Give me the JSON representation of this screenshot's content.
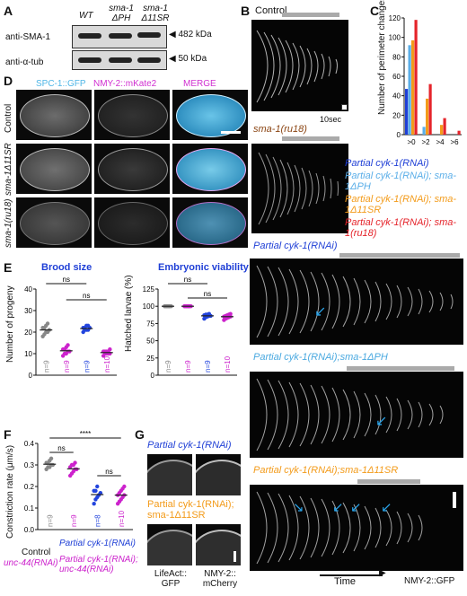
{
  "panels": {
    "A": "A",
    "B": "B",
    "C": "C",
    "D": "D",
    "E": "E",
    "F": "F",
    "G": "G"
  },
  "panelA": {
    "col1": "WT",
    "col2": "sma-1 ΔPH",
    "col3": "sma-1 Δ11SR",
    "row1": "anti-SMA-1",
    "row2": "anti-α-tub",
    "kda1": "482 kDa",
    "kda2": "50 kDa"
  },
  "panelB": {
    "control": "Control",
    "time_scale": "10sec",
    "ru18": "sma-1(ru18)",
    "partial": "Partial cyk-1(RNAi)",
    "partial_ph": "Partial cyk-1(RNAi);sma-1ΔPH",
    "partial_11sr": "Partial cyk-1(RNAi);sma-1Δ11SR",
    "time": "Time",
    "nmy": "NMY-2::GFP"
  },
  "panelC": {
    "ylabel": "Number of perimeter changes",
    "legend": [
      {
        "label": "Partial cyk-1(RNAi)",
        "color": "#1f3fd6"
      },
      {
        "label": "Partial cyk-1(RNAi); sma-1ΔPH",
        "color": "#5aaee8"
      },
      {
        "label": "Partial cyk-1(RNAi); sma-1Δ11SR",
        "color": "#f39b1a"
      },
      {
        "label": "Partial cyk-1(RNAi); sma-1(ru18)",
        "color": "#e5242b"
      }
    ]
  },
  "panelD": {
    "ch1": "SPC-1::GFP",
    "ch2": "NMY-2::mKate2",
    "ch3": "MERGE",
    "rows": [
      "Control",
      "sma-1Δ11SR",
      "sma-1(ru18)"
    ]
  },
  "panelE": {
    "brood_title": "Brood size",
    "brood_ylabel": "Number of progeny",
    "viab_title": "Embryonic viability",
    "viab_ylabel": "Hatched larvae (%)",
    "ns": "ns",
    "n": [
      "n=9",
      "n=9",
      "n=9",
      "n=10"
    ]
  },
  "panelF": {
    "ylabel": "Constriction rate (μm/s)",
    "stars": "****",
    "ns": "ns",
    "n": [
      "n=9",
      "n=9",
      "n=8",
      "n=10"
    ],
    "x_control": "Control",
    "x_unc": "unc-44(RNAi)",
    "x_partial": "Partial cyk-1(RNAi)",
    "x_partial_unc": "Partial cyk-1(RNAi); unc-44(RNAi)"
  },
  "panelG": {
    "row1": "Partial cyk-1(RNAi)",
    "row2": "Partial cyk-1(RNAi); sma-1Δ11SR",
    "col1": "LifeAct:: GFP",
    "col2": "NMY-2:: mCherry"
  },
  "chart_data": [
    {
      "type": "bar",
      "panel": "C",
      "categories": [
        ">0",
        ">2",
        ">4",
        ">6"
      ],
      "ylabel": "Number of perimeter changes",
      "ylim": [
        0,
        120
      ],
      "series": [
        {
          "name": "Partial cyk-1(RNAi)",
          "color": "#1f3fd6",
          "values": [
            47,
            0,
            0,
            0
          ]
        },
        {
          "name": "Partial cyk-1(RNAi); sma-1ΔPH",
          "color": "#5aaee8",
          "values": [
            92,
            8,
            0,
            0
          ]
        },
        {
          "name": "Partial cyk-1(RNAi); sma-1Δ11SR",
          "color": "#f39b1a",
          "values": [
            97,
            37,
            10,
            0
          ]
        },
        {
          "name": "Partial cyk-1(RNAi); sma-1(ru18)",
          "color": "#e5242b",
          "values": [
            118,
            52,
            17,
            4
          ]
        }
      ]
    },
    {
      "type": "scatter",
      "panel": "E-brood",
      "title": "Brood size",
      "ylabel": "Number of progeny",
      "ylim": [
        0,
        40
      ],
      "groups": [
        {
          "color": "#888888",
          "values": [
            18,
            19,
            20,
            20,
            21,
            22,
            22,
            23,
            24
          ]
        },
        {
          "color": "#cc22cc",
          "values": [
            9,
            10,
            10,
            11,
            11,
            12,
            12,
            13,
            14
          ]
        },
        {
          "color": "#2244dd",
          "values": [
            20,
            21,
            21,
            21,
            22,
            22,
            22,
            23,
            23
          ]
        },
        {
          "color": "#cc22cc",
          "values": [
            9,
            10,
            10,
            10,
            10,
            11,
            11,
            11,
            11,
            12
          ]
        }
      ]
    },
    {
      "type": "scatter",
      "panel": "E-viability",
      "title": "Embryonic viability",
      "ylabel": "Hatched larvae (%)",
      "ylim": [
        0,
        125
      ],
      "groups": [
        {
          "color": "#888888",
          "values": [
            100,
            100,
            100,
            100,
            100,
            100,
            100,
            100,
            100
          ]
        },
        {
          "color": "#cc22cc",
          "values": [
            100,
            100,
            100,
            100,
            100,
            100,
            100,
            100,
            100
          ]
        },
        {
          "color": "#2244dd",
          "values": [
            82,
            84,
            85,
            86,
            86,
            87,
            88,
            88,
            89
          ]
        },
        {
          "color": "#cc22cc",
          "values": [
            80,
            82,
            83,
            84,
            85,
            85,
            86,
            87,
            88,
            89
          ]
        }
      ]
    },
    {
      "type": "scatter",
      "panel": "F",
      "ylabel": "Constriction rate (μm/s)",
      "ylim": [
        0,
        0.4
      ],
      "groups": [
        {
          "color": "#888888",
          "values": [
            0.28,
            0.29,
            0.29,
            0.3,
            0.3,
            0.31,
            0.31,
            0.32,
            0.33
          ]
        },
        {
          "color": "#cc22cc",
          "values": [
            0.25,
            0.26,
            0.27,
            0.28,
            0.28,
            0.29,
            0.3,
            0.3,
            0.31
          ]
        },
        {
          "color": "#2244dd",
          "values": [
            0.12,
            0.14,
            0.15,
            0.16,
            0.17,
            0.18,
            0.18,
            0.2
          ]
        },
        {
          "color": "#cc22cc",
          "values": [
            0.12,
            0.13,
            0.14,
            0.15,
            0.16,
            0.16,
            0.17,
            0.18,
            0.19,
            0.2
          ]
        }
      ]
    }
  ]
}
